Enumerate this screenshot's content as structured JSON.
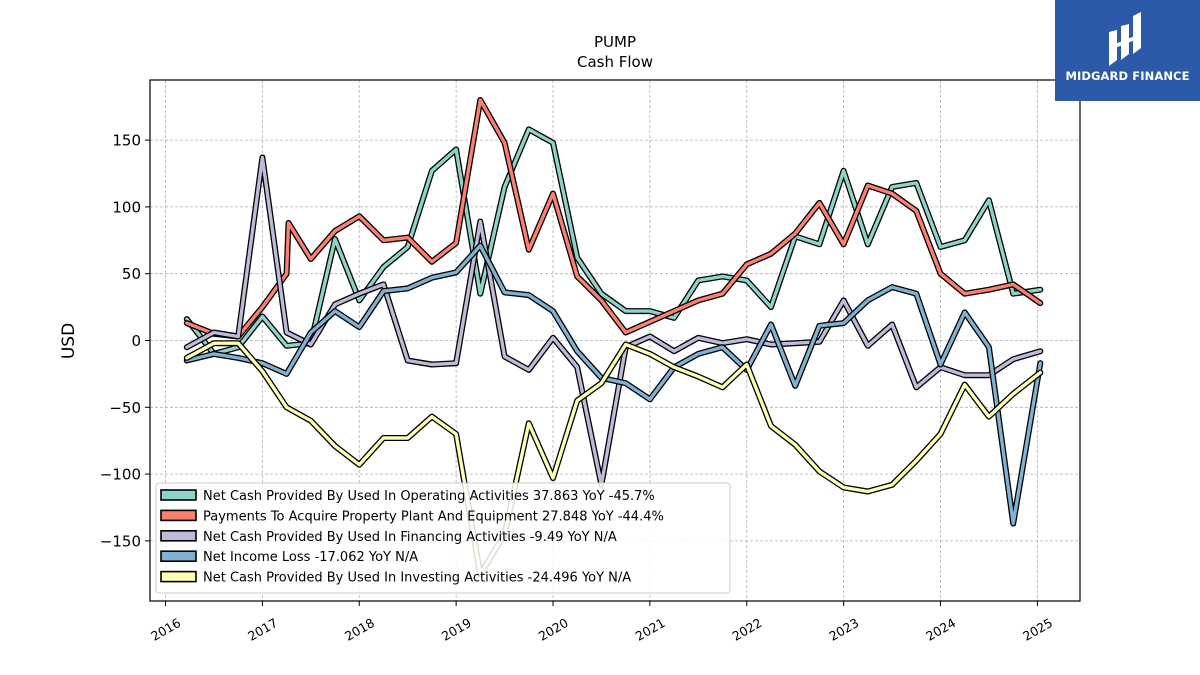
{
  "logo": {
    "text": "MIDGARD FINANCE",
    "icon": "midgard-logo-icon"
  },
  "chart_data": {
    "type": "line",
    "title": "PUMP",
    "subtitle": "Cash Flow",
    "xlabel": "",
    "ylabel": "USD",
    "xlim": [
      2015.84,
      2025.44
    ],
    "ylim": [
      -195,
      195
    ],
    "yticks": [
      -150,
      -100,
      -50,
      0,
      50,
      100,
      150
    ],
    "yticklabels": [
      "−150",
      "−100",
      "−50",
      "0",
      "50",
      "100",
      "150"
    ],
    "xticks": [
      2016,
      2017,
      2018,
      2019,
      2020,
      2021,
      2022,
      2023,
      2024,
      2025
    ],
    "xticklabels": [
      "2016",
      "2017",
      "2018",
      "2019",
      "2020",
      "2021",
      "2022",
      "2023",
      "2024",
      "2025"
    ],
    "grid": true,
    "legend_position": "lower-left",
    "series": [
      {
        "name": "Net Cash Provided By Used In Operating Activities",
        "legend": "Net Cash Provided By Used In Operating Activities  37.863 YoY -45.7%",
        "color": "#8dd3c7",
        "x": [
          2016.22,
          2016.5,
          2016.75,
          2017.0,
          2017.25,
          2017.5,
          2017.75,
          2018.0,
          2018.25,
          2018.5,
          2018.75,
          2019.0,
          2019.25,
          2019.5,
          2019.75,
          2020.0,
          2020.25,
          2020.5,
          2020.75,
          2021.0,
          2021.25,
          2021.5,
          2021.75,
          2022.0,
          2022.25,
          2022.5,
          2022.75,
          2023.0,
          2023.25,
          2023.5,
          2023.75,
          2024.0,
          2024.25,
          2024.5,
          2024.75,
          2025.03
        ],
        "y": [
          16,
          -10,
          -5,
          18,
          -4,
          -2,
          76,
          30,
          55,
          70,
          127,
          143,
          35,
          115,
          158,
          148,
          62,
          35,
          22,
          22,
          17,
          45,
          48,
          45,
          25,
          78,
          72,
          127,
          72,
          115,
          118,
          70,
          75,
          105,
          35,
          38
        ]
      },
      {
        "name": "Payments To Acquire Property Plant And Equipment",
        "legend": "Payments To Acquire Property Plant And Equipment  27.848 YoY -44.4%",
        "color": "#fb8072",
        "x": [
          2016.22,
          2016.5,
          2016.75,
          2017.0,
          2017.25,
          2017.27,
          2017.5,
          2017.75,
          2018.0,
          2018.25,
          2018.5,
          2018.75,
          2019.0,
          2019.25,
          2019.5,
          2019.75,
          2020.0,
          2020.25,
          2020.5,
          2020.75,
          2021.0,
          2021.25,
          2021.5,
          2021.75,
          2022.0,
          2022.25,
          2022.5,
          2022.75,
          2023.0,
          2023.25,
          2023.5,
          2023.75,
          2024.0,
          2024.25,
          2024.5,
          2024.75,
          2025.03
        ],
        "y": [
          13,
          5,
          3,
          25,
          50,
          88,
          61,
          82,
          93,
          75,
          77,
          59,
          73,
          180,
          148,
          68,
          110,
          48,
          30,
          6,
          14,
          22,
          30,
          35,
          57,
          65,
          80,
          103,
          72,
          116,
          110,
          97,
          50,
          35,
          38,
          42,
          28
        ]
      },
      {
        "name": "Net Cash Provided By Used In Financing Activities",
        "legend": "Net Cash Provided By Used In Financing Activities  -9.49 YoY N/A",
        "color": "#bebada",
        "x": [
          2016.22,
          2016.5,
          2016.75,
          2017.0,
          2017.25,
          2017.5,
          2017.75,
          2018.0,
          2018.25,
          2018.5,
          2018.75,
          2019.0,
          2019.25,
          2019.5,
          2019.75,
          2020.0,
          2020.25,
          2020.5,
          2020.75,
          2021.0,
          2021.25,
          2021.5,
          2021.75,
          2022.0,
          2022.25,
          2022.5,
          2022.75,
          2023.0,
          2023.25,
          2023.5,
          2023.75,
          2024.0,
          2024.25,
          2024.5,
          2024.75,
          2025.03
        ],
        "y": [
          -5,
          6,
          3,
          137,
          6,
          -3,
          27,
          35,
          42,
          -15,
          -18,
          -17,
          89,
          -12,
          -22,
          2,
          -20,
          -108,
          -5,
          3,
          -8,
          2,
          -2,
          1,
          -3,
          -2,
          -1,
          30,
          -4,
          12,
          -35,
          -20,
          -26,
          -26,
          -14,
          -8
        ]
      },
      {
        "name": "Net Income Loss",
        "legend": "Net Income Loss  -17.062 YoY N/A",
        "color": "#80b1d3",
        "x": [
          2016.22,
          2016.5,
          2016.75,
          2017.0,
          2017.25,
          2017.5,
          2017.75,
          2018.0,
          2018.25,
          2018.5,
          2018.75,
          2019.0,
          2019.25,
          2019.5,
          2019.75,
          2020.0,
          2020.25,
          2020.5,
          2020.75,
          2021.0,
          2021.25,
          2021.5,
          2021.75,
          2022.0,
          2022.25,
          2022.5,
          2022.75,
          2023.0,
          2023.25,
          2023.5,
          2023.75,
          2024.0,
          2024.25,
          2024.5,
          2024.75,
          2025.03
        ],
        "y": [
          -15,
          -10,
          -13,
          -17,
          -25,
          6,
          22,
          10,
          37,
          39,
          47,
          51,
          71,
          36,
          34,
          22,
          -8,
          -28,
          -32,
          -44,
          -20,
          -10,
          -5,
          -22,
          12,
          -34,
          11,
          13,
          30,
          40,
          35,
          -18,
          21,
          -5,
          -137,
          -17
        ]
      },
      {
        "name": "Net Cash Provided By Used In Investing Activities",
        "legend": "Net Cash Provided By Used In Investing Activities  -24.496 YoY N/A",
        "color": "#ffffb3",
        "x": [
          2016.22,
          2016.5,
          2016.75,
          2017.0,
          2017.25,
          2017.5,
          2017.75,
          2018.0,
          2018.25,
          2018.5,
          2018.75,
          2019.0,
          2019.25,
          2019.5,
          2019.75,
          2020.0,
          2020.25,
          2020.5,
          2020.75,
          2021.0,
          2021.25,
          2021.5,
          2021.75,
          2022.0,
          2022.25,
          2022.5,
          2022.75,
          2023.0,
          2023.25,
          2023.5,
          2023.75,
          2024.0,
          2024.25,
          2024.5,
          2024.75,
          2025.03
        ],
        "y": [
          -13,
          -2,
          -2,
          -23,
          -50,
          -60,
          -79,
          -93,
          -73,
          -73,
          -57,
          -70,
          -175,
          -145,
          -62,
          -103,
          -45,
          -32,
          -3,
          -10,
          -20,
          -27,
          -35,
          -18,
          -64,
          -78,
          -98,
          -110,
          -113,
          -108,
          -90,
          -70,
          -33,
          -57,
          -40,
          -24
        ]
      }
    ]
  }
}
